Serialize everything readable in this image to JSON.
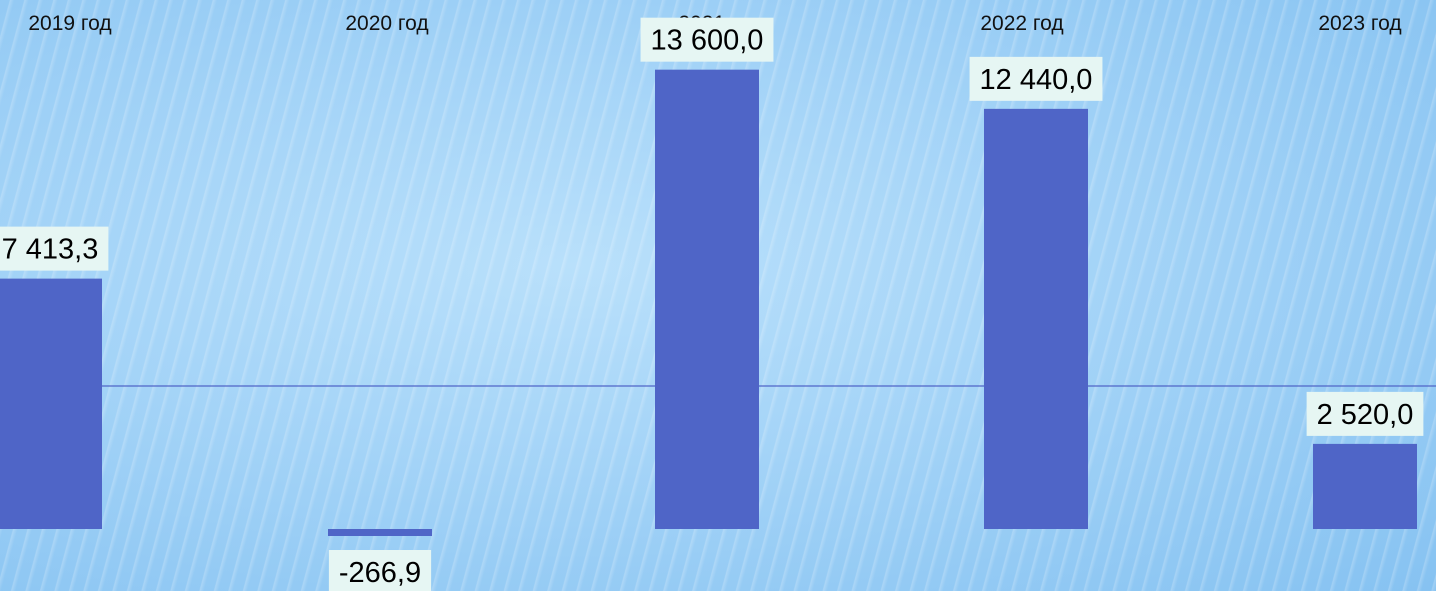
{
  "chart_data": {
    "type": "bar",
    "categories": [
      "2019 год",
      "2020 год",
      "2021 год",
      "2022 год",
      "2023 год"
    ],
    "values": [
      7413.3,
      -266.9,
      13600.0,
      12440.0,
      2520.0
    ],
    "data_labels": [
      "7 413,3",
      "-266,9",
      "13 600,0",
      "12 440,0",
      "2 520,0"
    ],
    "title": "",
    "xlabel": "",
    "ylabel": "",
    "grid": false,
    "legend": "none"
  },
  "colors": {
    "bar": "#4f65c7",
    "axis_line": "#4f65c7",
    "label_background": "#e6f6f3"
  }
}
